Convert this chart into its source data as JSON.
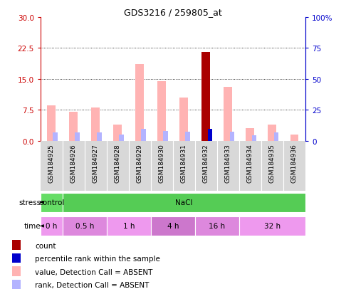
{
  "title": "GDS3216 / 259805_at",
  "samples": [
    "GSM184925",
    "GSM184926",
    "GSM184927",
    "GSM184928",
    "GSM184929",
    "GSM184930",
    "GSM184931",
    "GSM184932",
    "GSM184933",
    "GSM184934",
    "GSM184935",
    "GSM184936"
  ],
  "value_absent": [
    8.5,
    7.0,
    8.0,
    4.0,
    18.5,
    14.5,
    10.5,
    0.0,
    13.0,
    3.0,
    4.0,
    1.5
  ],
  "rank_absent": [
    6.5,
    6.5,
    6.5,
    5.0,
    9.5,
    8.0,
    7.5,
    0.0,
    7.5,
    4.5,
    6.5,
    0.0
  ],
  "count": [
    0.0,
    0.0,
    0.0,
    0.0,
    0.0,
    0.0,
    0.0,
    21.5,
    0.0,
    0.0,
    0.0,
    0.0
  ],
  "percentile_rank": [
    0.0,
    0.0,
    0.0,
    0.0,
    0.0,
    0.0,
    0.0,
    9.5,
    0.0,
    0.0,
    0.0,
    0.0
  ],
  "ylim_left": [
    0,
    30
  ],
  "yticks_left": [
    0,
    7.5,
    15,
    22.5,
    30
  ],
  "ylim_right": [
    0,
    100
  ],
  "yticks_right": [
    0,
    25,
    50,
    75,
    100
  ],
  "color_value_absent": "#ffb3b3",
  "color_rank_absent": "#b3b3ff",
  "color_count": "#aa0000",
  "color_percentile": "#0000cc",
  "color_left_axis": "#cc0000",
  "color_right_axis": "#0000cc",
  "time_groups": [
    {
      "label": "0 h",
      "start": 0,
      "end": 1,
      "color": "#ee99ee"
    },
    {
      "label": "0.5 h",
      "start": 1,
      "end": 3,
      "color": "#dd88dd"
    },
    {
      "label": "1 h",
      "start": 3,
      "end": 5,
      "color": "#ee99ee"
    },
    {
      "label": "4 h",
      "start": 5,
      "end": 7,
      "color": "#cc77cc"
    },
    {
      "label": "16 h",
      "start": 7,
      "end": 9,
      "color": "#dd88dd"
    },
    {
      "label": "32 h",
      "start": 9,
      "end": 12,
      "color": "#ee99ee"
    }
  ],
  "stress_groups": [
    {
      "label": "control",
      "start": 0,
      "end": 1,
      "color": "#66dd66"
    },
    {
      "label": "NaCl",
      "start": 1,
      "end": 12,
      "color": "#55cc55"
    }
  ],
  "background_color": "#ffffff"
}
